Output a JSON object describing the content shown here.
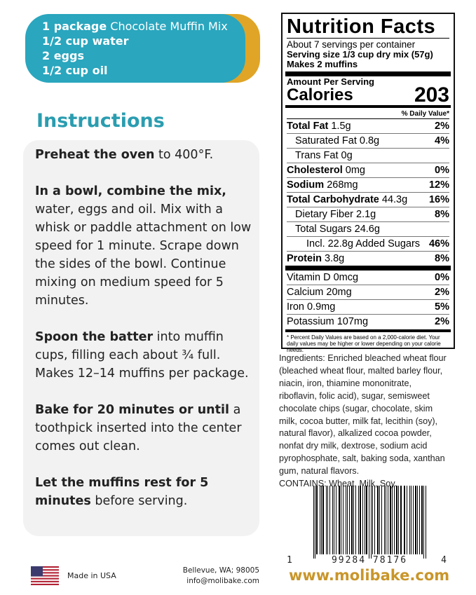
{
  "ingredients_pill": {
    "lines": [
      {
        "bold": "1 package",
        "rest": " Chocolate Muffin Mix"
      },
      {
        "bold": "1/2 cup water",
        "rest": ""
      },
      {
        "bold": "2 eggs",
        "rest": ""
      },
      {
        "bold": "1/2 cup oil",
        "rest": ""
      }
    ]
  },
  "instructions": {
    "title": "Instructions",
    "steps": [
      {
        "lead": "Preheat the oven",
        "rest": " to 400°F."
      },
      {
        "lead": "In a bowl, combine the mix,",
        "rest": " water, eggs and oil. Mix with a whisk or paddle attachment on low speed for 1 minute. Scrape down the sides of the bowl. Continue mixing on medium speed for 5 minutes."
      },
      {
        "lead": "Spoon the batter",
        "rest": " into muffin cups, filling each about ¾ full. Makes 12–14 muffins per package."
      },
      {
        "lead": "Bake for 20 minutes or until",
        "rest": " a toothpick inserted into the center comes out clean."
      },
      {
        "lead": "Let the muffins rest for 5 minutes",
        "rest": " before serving."
      }
    ]
  },
  "nutrition": {
    "title": "Nutrition Facts",
    "servings": "About 7 servings per container",
    "serving_size": "Serving size 1/3 cup dry mix (57g)",
    "makes": "Makes 2 muffins",
    "amount_label": "Amount Per Serving",
    "calories_label": "Calories",
    "calories": "203",
    "dv_label": "% Daily Value*",
    "rows": [
      {
        "name": "Total Fat",
        "amount": " 1.5g",
        "dv": "2%",
        "bold": true,
        "indent": 0
      },
      {
        "name": "Saturated Fat 0.8g",
        "amount": "",
        "dv": "4%",
        "bold": false,
        "indent": 1
      },
      {
        "name": "Trans Fat 0g",
        "amount": "",
        "dv": "",
        "bold": false,
        "indent": 1
      },
      {
        "name": "Cholesterol",
        "amount": " 0mg",
        "dv": "0%",
        "bold": true,
        "indent": 0
      },
      {
        "name": "Sodium",
        "amount": " 268mg",
        "dv": "12%",
        "bold": true,
        "indent": 0
      },
      {
        "name": "Total Carbohydrate",
        "amount": " 44.3g",
        "dv": "16%",
        "bold": true,
        "indent": 0
      },
      {
        "name": "Dietary Fiber 2.1g",
        "amount": "",
        "dv": "8%",
        "bold": false,
        "indent": 1
      },
      {
        "name": "Total Sugars 24.6g",
        "amount": "",
        "dv": "",
        "bold": false,
        "indent": 1
      },
      {
        "name": "Incl. 22.8g Added Sugars",
        "amount": "",
        "dv": "46%",
        "bold": false,
        "indent": 2
      },
      {
        "name": "Protein",
        "amount": " 3.8g",
        "dv": "8%",
        "bold": true,
        "indent": 0
      }
    ],
    "vitamins": [
      {
        "name": "Vitamin D 0mcg",
        "dv": "0%"
      },
      {
        "name": "Calcium 20mg",
        "dv": "2%"
      },
      {
        "name": "Iron 0.9mg",
        "dv": "5%"
      },
      {
        "name": "Potassium 107mg",
        "dv": "2%"
      }
    ],
    "footnote": "* Percent Daily Values are based on a 2,000-calorie diet. Your daily values may be higher or lower depending on your calorie needs."
  },
  "ingredients_text": "Ingredients: Enriched bleached wheat flour (bleached wheat flour, malted barley flour, niacin, iron, thiamine mononitrate, riboflavin, folic acid), sugar, semisweet chocolate chips (sugar, chocolate, skim milk, cocoa butter, milk fat, lecithin (soy), natural flavor), alkalized cocoa powder, nonfat dry milk, dextrose, sodium acid pyrophosphate, salt, baking soda, xanthan gum, natural flavors.",
  "contains": "CONTAINS: Wheat, Milk, Soy.",
  "barcode": {
    "digits": [
      "1",
      "99284 78176",
      "4"
    ]
  },
  "footer": {
    "made_in": "Made in USA",
    "address": "Bellevue, WA; 98005",
    "email": "info@molibake.com",
    "website": "www.molibake.com"
  },
  "colors": {
    "teal": "#2aa6be",
    "gold": "#e0a526",
    "website": "#c9962a"
  }
}
